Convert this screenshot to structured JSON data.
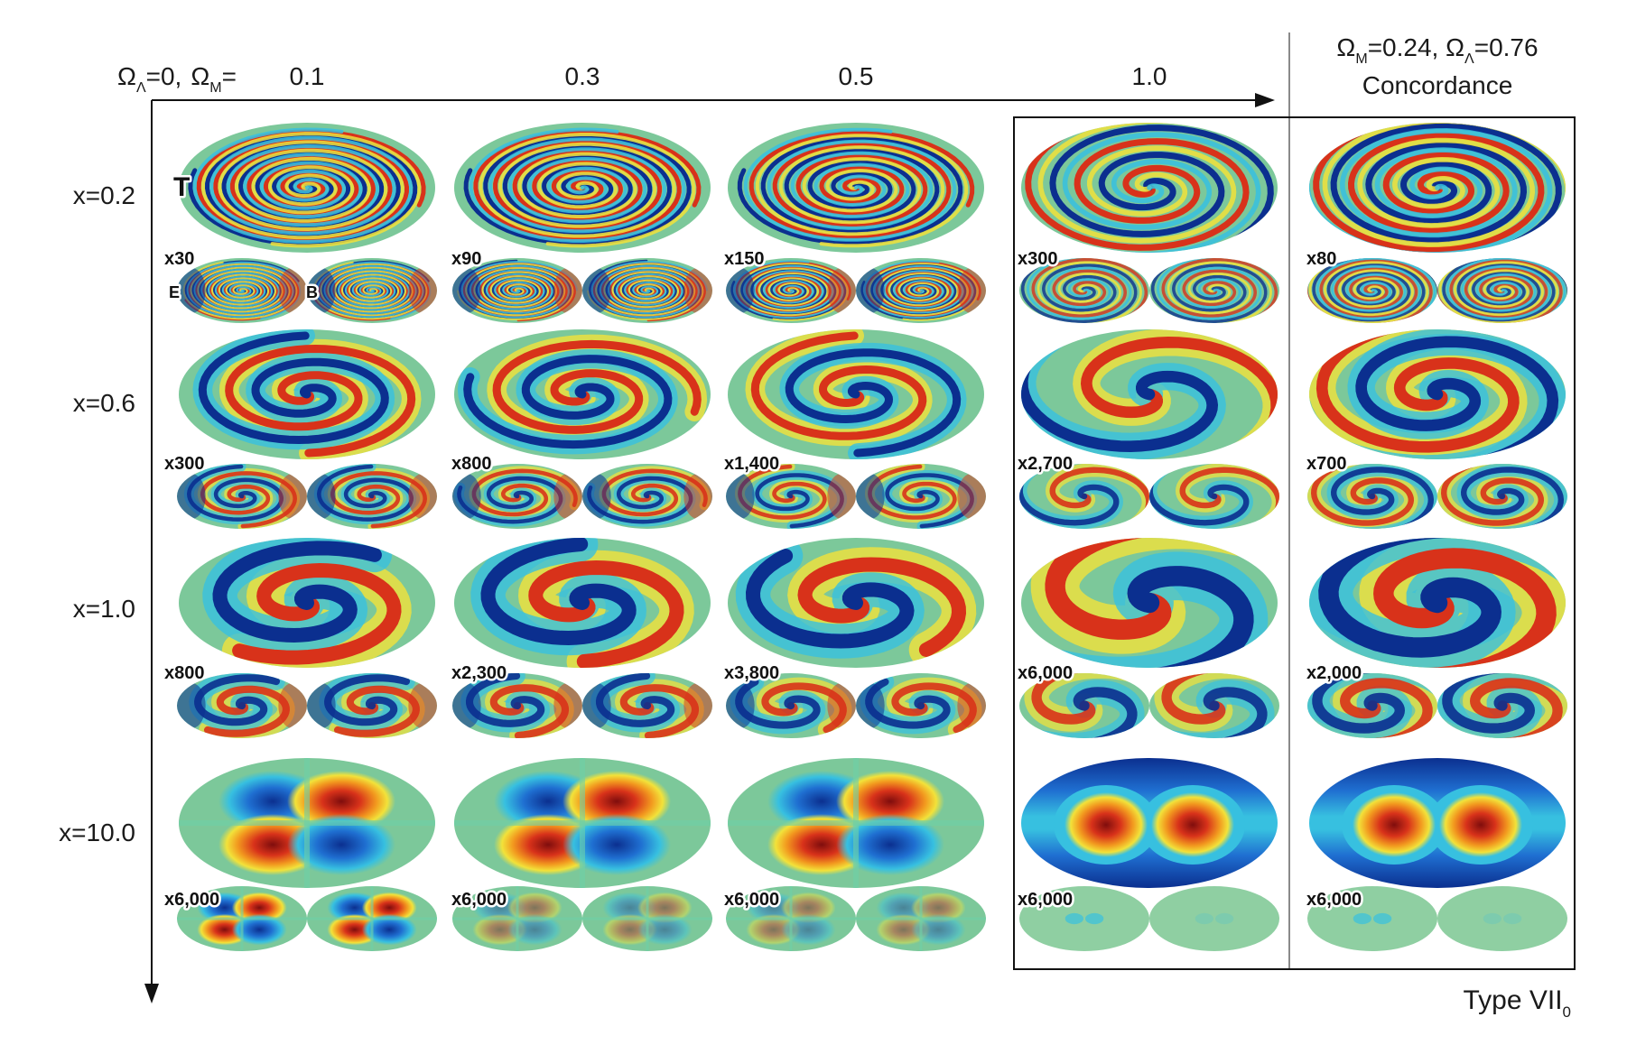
{
  "header": {
    "prefix_omega_lambda": "Ω",
    "prefix_sub_lambda": "Λ",
    "prefix_eq0": "=0,",
    "prefix_omega_m": "Ω",
    "prefix_sub_m": "M",
    "prefix_eq": "=",
    "omega_m_values": [
      "0.1",
      "0.3",
      "0.5",
      "1.0"
    ],
    "concordance_line1": {
      "o1": "Ω",
      "s1": "M",
      "v1": "=0.24, ",
      "o2": "Ω",
      "s2": "Λ",
      "v2": "=0.76"
    },
    "concordance_line2": "Concordance"
  },
  "rows": [
    "x=0.2",
    "x=0.6",
    "x=1.0",
    "x=10.0"
  ],
  "map_labels": {
    "temperature": "T",
    "e_mode": "E",
    "b_mode": "B"
  },
  "multipliers": [
    [
      "x30",
      "x90",
      "x150",
      "x300",
      "x80"
    ],
    [
      "x300",
      "x800",
      "x1,400",
      "x2,700",
      "x700"
    ],
    [
      "x800",
      "x2,300",
      "x3,800",
      "x6,000",
      "x2,000"
    ],
    [
      "x6,000",
      "x6,000",
      "x6,000",
      "x6,000",
      "x6,000"
    ]
  ],
  "footer": {
    "type_label": "Type VII",
    "type_sub": "0"
  },
  "colors": {
    "colormap": [
      "#0b2f8f",
      "#1f6fd1",
      "#37c0e0",
      "#6fd0a8",
      "#bcd75a",
      "#f2e23a",
      "#f29a1f",
      "#d8321a",
      "#7f0d0d"
    ],
    "background_field": "#7cc89a",
    "axis": "#111111",
    "divider": "#888888"
  }
}
